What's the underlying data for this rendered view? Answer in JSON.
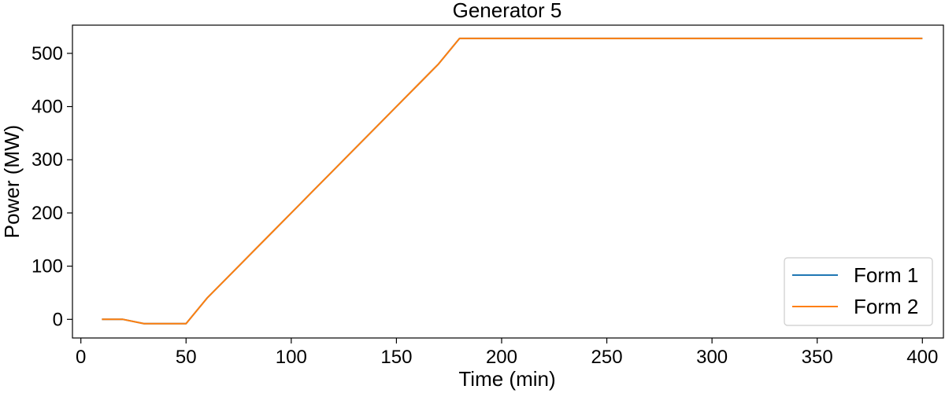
{
  "chart_data": {
    "type": "line",
    "title": "Generator 5",
    "xlabel": "Time (min)",
    "ylabel": "Power (MW)",
    "xlim": [
      -4,
      410
    ],
    "ylim": [
      -35,
      553
    ],
    "xticks": [
      0,
      50,
      100,
      150,
      200,
      250,
      300,
      350,
      400
    ],
    "yticks": [
      0,
      100,
      200,
      300,
      400,
      500
    ],
    "grid": false,
    "legend_position": "bottom-right",
    "series": [
      {
        "name": "Form 1",
        "color": "#1f77b4",
        "x": [
          10,
          20,
          30,
          40,
          50,
          60,
          70,
          80,
          90,
          100,
          110,
          120,
          130,
          140,
          150,
          160,
          170,
          180,
          190,
          200,
          250,
          300,
          350,
          400
        ],
        "y": [
          0,
          0,
          -8,
          -8,
          -8,
          40,
          80,
          120,
          160,
          200,
          240,
          280,
          320,
          360,
          400,
          440,
          480,
          528,
          528,
          528,
          528,
          528,
          528,
          528
        ]
      },
      {
        "name": "Form 2",
        "color": "#ff7f0e",
        "x": [
          10,
          20,
          30,
          40,
          50,
          60,
          70,
          80,
          90,
          100,
          110,
          120,
          130,
          140,
          150,
          160,
          170,
          180,
          190,
          200,
          250,
          300,
          350,
          400
        ],
        "y": [
          0,
          0,
          -8,
          -8,
          -8,
          40,
          80,
          120,
          160,
          200,
          240,
          280,
          320,
          360,
          400,
          440,
          480,
          528,
          528,
          528,
          528,
          528,
          528,
          528
        ]
      }
    ]
  }
}
